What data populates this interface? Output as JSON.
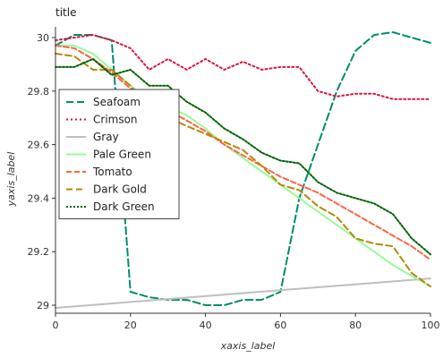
{
  "chart_data": {
    "type": "line",
    "title": "title",
    "xlabel": "xaxis_label",
    "ylabel": "yaxis_label",
    "xlim": [
      0,
      100
    ],
    "ylim": [
      28.97,
      30.04
    ],
    "x_ticks": [
      0,
      20,
      40,
      60,
      80,
      100
    ],
    "y_ticks": [
      29.0,
      29.2,
      29.4,
      29.6,
      29.8,
      30.0
    ],
    "x_tick_labels": [
      "0",
      "20",
      "40",
      "60",
      "80",
      "100"
    ],
    "y_tick_labels": [
      "29",
      "29.2",
      "29.4",
      "29.6",
      "29.8",
      "30"
    ],
    "grid": false,
    "legend_position": "left-center",
    "series": [
      {
        "name": "Seafoam",
        "color": "#008b6b",
        "dash": "8,4",
        "x": [
          0,
          5,
          10,
          15,
          20,
          25,
          30,
          35,
          40,
          45,
          50,
          55,
          60,
          65,
          70,
          75,
          80,
          85,
          90,
          95,
          100
        ],
        "y": [
          29.97,
          30.01,
          30.01,
          29.99,
          29.05,
          29.03,
          29.02,
          29.02,
          29.0,
          29.0,
          29.02,
          29.02,
          29.05,
          29.4,
          29.6,
          29.8,
          29.95,
          30.01,
          30.02,
          30.0,
          29.98
        ]
      },
      {
        "name": "Crimson",
        "color": "#dc143c",
        "dash": "2,3",
        "x": [
          0,
          5,
          10,
          15,
          20,
          25,
          30,
          35,
          40,
          45,
          50,
          55,
          60,
          65,
          70,
          75,
          80,
          85,
          90,
          95,
          100
        ],
        "y": [
          29.99,
          30.0,
          30.01,
          29.99,
          29.96,
          29.88,
          29.92,
          29.88,
          29.92,
          29.88,
          29.91,
          29.88,
          29.89,
          29.89,
          29.8,
          29.78,
          29.79,
          29.79,
          29.77,
          29.77,
          29.77
        ]
      },
      {
        "name": "Gray",
        "color": "#bfbfbf",
        "dash": "",
        "x": [
          0,
          100
        ],
        "y": [
          28.99,
          29.1
        ]
      },
      {
        "name": "Pale Green",
        "color": "#98fb98",
        "dash": "",
        "x": [
          0,
          5,
          10,
          15,
          20,
          25,
          30,
          35,
          40,
          45,
          50,
          55,
          60,
          65,
          70,
          75,
          80,
          85,
          90,
          95,
          100
        ],
        "y": [
          29.97,
          29.97,
          29.94,
          29.88,
          29.82,
          29.77,
          29.74,
          29.71,
          29.66,
          29.6,
          29.55,
          29.5,
          29.45,
          29.4,
          29.35,
          29.3,
          29.25,
          29.2,
          29.15,
          29.11,
          29.07
        ]
      },
      {
        "name": "Tomato",
        "color": "#ff6347",
        "dash": "6,3",
        "x": [
          0,
          5,
          10,
          15,
          20,
          25,
          30,
          35,
          40,
          45,
          50,
          55,
          60,
          65,
          70,
          75,
          80,
          85,
          90,
          95,
          100
        ],
        "y": [
          29.97,
          29.96,
          29.92,
          29.87,
          29.81,
          29.76,
          29.73,
          29.69,
          29.65,
          29.6,
          29.56,
          29.52,
          29.48,
          29.45,
          29.42,
          29.38,
          29.34,
          29.3,
          29.26,
          29.22,
          29.17
        ]
      },
      {
        "name": "Dark Gold",
        "color": "#b8860b",
        "dash": "7,4",
        "x": [
          0,
          5,
          10,
          15,
          20,
          25,
          30,
          35,
          40,
          45,
          50,
          55,
          60,
          65,
          70,
          75,
          80,
          85,
          90,
          95,
          100
        ],
        "y": [
          29.94,
          29.93,
          29.88,
          29.88,
          29.82,
          29.74,
          29.7,
          29.67,
          29.64,
          29.61,
          29.58,
          29.52,
          29.45,
          29.43,
          29.37,
          29.33,
          29.25,
          29.23,
          29.22,
          29.12,
          29.07
        ]
      },
      {
        "name": "Dark Green",
        "color": "#006400",
        "dash": "2,2",
        "x": [
          0,
          5,
          10,
          15,
          20,
          25,
          30,
          35,
          40,
          45,
          50,
          55,
          60,
          65,
          70,
          75,
          80,
          85,
          90,
          95,
          100
        ],
        "y": [
          29.89,
          29.89,
          29.92,
          29.86,
          29.88,
          29.82,
          29.82,
          29.76,
          29.72,
          29.66,
          29.62,
          29.57,
          29.54,
          29.53,
          29.46,
          29.42,
          29.4,
          29.38,
          29.34,
          29.25,
          29.19
        ]
      }
    ]
  }
}
